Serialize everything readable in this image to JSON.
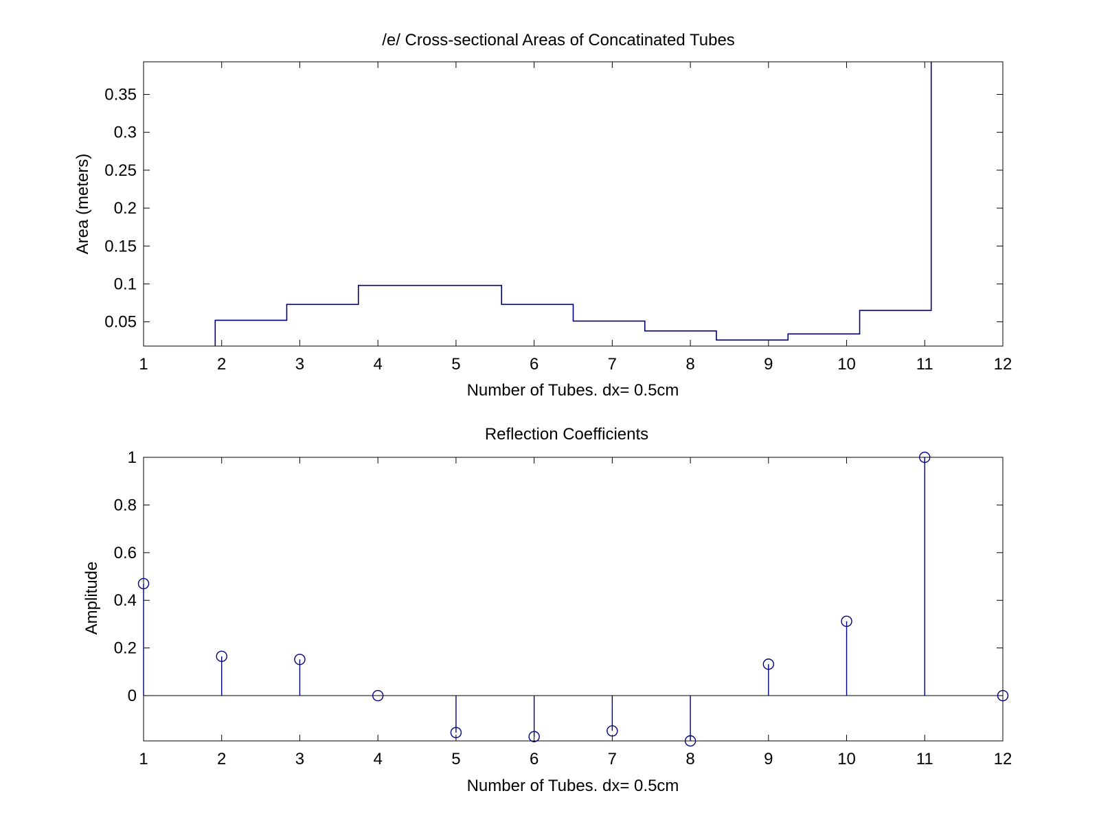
{
  "chart_data": [
    {
      "type": "stairs",
      "title": "/e/ Cross-sectional Areas of Concatinated Tubes",
      "xlabel": "Number of Tubes. dx= 0.5cm",
      "ylabel": "Area (meters)",
      "xlim": [
        1,
        12
      ],
      "ylim": [
        0.018,
        0.393
      ],
      "xticks": [
        1,
        2,
        3,
        4,
        5,
        6,
        7,
        8,
        9,
        10,
        11,
        12
      ],
      "xtick_labels": [
        "1",
        "2",
        "3",
        "4",
        "5",
        "6",
        "7",
        "8",
        "9",
        "10",
        "11",
        "12"
      ],
      "yticks": [
        0.05,
        0.1,
        0.15,
        0.2,
        0.25,
        0.3,
        0.35
      ],
      "ytick_labels": [
        "0.05",
        "0.1",
        "0.15",
        "0.2",
        "0.25",
        "0.3",
        "0.35"
      ],
      "grid": false,
      "color": "#00007f",
      "x": [
        1.917,
        2.833,
        3.75,
        5.583,
        6.5,
        7.417,
        8.333,
        9.25,
        10.167,
        11.083
      ],
      "values": [
        0.052,
        0.073,
        0.098,
        0.073,
        0.051,
        0.038,
        0.026,
        0.034,
        0.065,
        0.393
      ]
    },
    {
      "type": "stem",
      "title": "Reflection Coefficients",
      "xlabel": "Number of Tubes. dx= 0.5cm",
      "ylabel": "Amplitude",
      "xlim": [
        1,
        12
      ],
      "ylim": [
        -0.19,
        1
      ],
      "xticks": [
        1,
        2,
        3,
        4,
        5,
        6,
        7,
        8,
        9,
        10,
        11,
        12
      ],
      "xtick_labels": [
        "1",
        "2",
        "3",
        "4",
        "5",
        "6",
        "7",
        "8",
        "9",
        "10",
        "11",
        "12"
      ],
      "yticks": [
        0,
        0.2,
        0.4,
        0.6,
        0.8,
        1
      ],
      "ytick_labels": [
        "0",
        "0.2",
        "0.4",
        "0.6",
        "0.8",
        "1"
      ],
      "grid": false,
      "color": "#00007f",
      "x": [
        1,
        2,
        3,
        4,
        5,
        6,
        7,
        8,
        9,
        10,
        11,
        12
      ],
      "values": [
        0.47,
        0.165,
        0.152,
        0,
        -0.155,
        -0.172,
        -0.148,
        -0.19,
        0.132,
        0.312,
        1,
        0
      ]
    }
  ]
}
